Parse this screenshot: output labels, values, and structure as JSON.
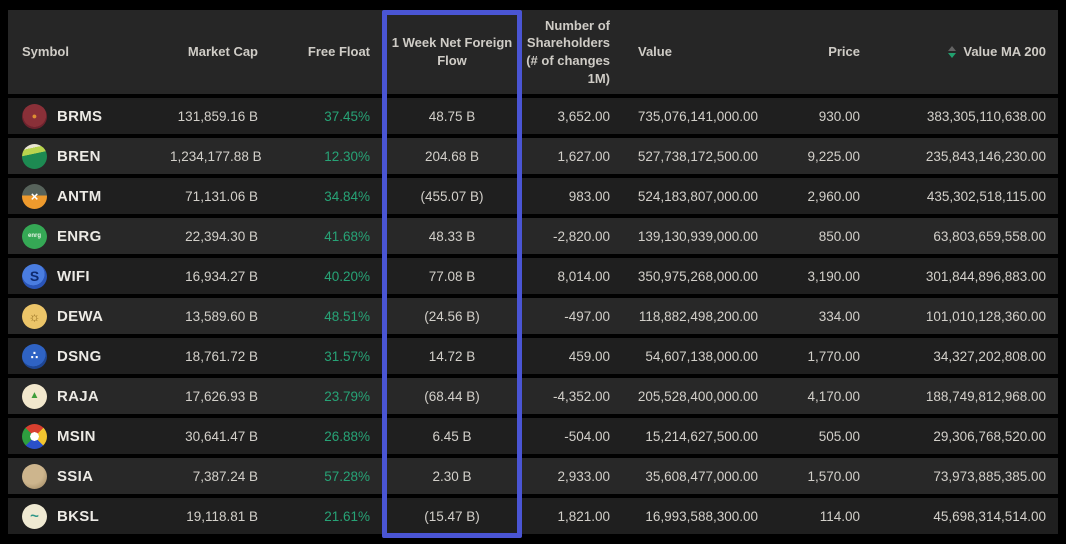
{
  "colors": {
    "bg": "#000000",
    "header_bg": "#262626",
    "row_odd": "#1f1f1f",
    "row_even": "#282828",
    "text": "#d3d0ca",
    "text_bright": "#eceae5",
    "positive_green": "#27a376",
    "highlight_border": "#4a55d4",
    "sort_up": "#636363",
    "sort_down": "#21a06e"
  },
  "table": {
    "columns": [
      {
        "id": "symbol",
        "label": "Symbol"
      },
      {
        "id": "market_cap",
        "label": "Market Cap"
      },
      {
        "id": "free_float",
        "label": "Free Float"
      },
      {
        "id": "net_foreign_flow",
        "label": "1 Week Net Foreign Flow",
        "highlighted": true
      },
      {
        "id": "num_shareholders",
        "label": "Number of Shareholders (# of changes 1M)"
      },
      {
        "id": "value",
        "label": "Value"
      },
      {
        "id": "price",
        "label": "Price"
      },
      {
        "id": "value_ma_200",
        "label": "Value MA 200",
        "sort_icon": true
      }
    ],
    "rows": [
      {
        "symbol": "BRMS",
        "market_cap": "131,859.16 B",
        "free_float": "37.45%",
        "net_foreign_flow": "48.75 B",
        "num_shareholders": "3,652.00",
        "value": "735,076,141,000.00",
        "price": "930.00",
        "value_ma_200": "383,305,110,638.00",
        "icon": {
          "bg": "radial-gradient(circle at 50% 45%, #8a3038 0 62%, #6d222d 63%)",
          "fg": "#de8f33",
          "glyph": "●",
          "glyph_size": "9px"
        }
      },
      {
        "symbol": "BREN",
        "market_cap": "1,234,177.88 B",
        "free_float": "12.30%",
        "net_foreign_flow": "204.68 B",
        "num_shareholders": "1,627.00",
        "value": "527,738,172,500.00",
        "price": "9,225.00",
        "value_ma_200": "235,843,146,230.00",
        "icon": {
          "bg": "linear-gradient(168deg, #e9e5d1 0 20%, #b8d44e 20% 40%, #1d8a52 41%)",
          "fg": "#ffffff",
          "glyph": ""
        }
      },
      {
        "symbol": "ANTM",
        "market_cap": "71,131.06 B",
        "free_float": "34.84%",
        "net_foreign_flow": "(455.07 B)",
        "num_shareholders": "983.00",
        "value": "524,183,807,000.00",
        "price": "2,960.00",
        "value_ma_200": "435,302,518,115.00",
        "icon": {
          "bg": "linear-gradient(180deg, #57635b 0 46%, #ee9a2d 46%)",
          "fg": "#ffffff",
          "glyph": "×",
          "glyph_size": "13px"
        }
      },
      {
        "symbol": "ENRG",
        "market_cap": "22,394.30 B",
        "free_float": "41.68%",
        "net_foreign_flow": "48.33 B",
        "num_shareholders": "-2,820.00",
        "value": "139,130,939,000.00",
        "price": "850.00",
        "value_ma_200": "63,803,659,558.00",
        "icon": {
          "bg": "radial-gradient(circle, #35a855 0 70%, #237c3d 71%)",
          "fg": "#e8f5e8",
          "glyph": "enrg",
          "glyph_size": "6px"
        }
      },
      {
        "symbol": "WIFI",
        "market_cap": "16,934.27 B",
        "free_float": "40.20%",
        "net_foreign_flow": "77.08 B",
        "num_shareholders": "8,014.00",
        "value": "350,975,268,000.00",
        "price": "3,190.00",
        "value_ma_200": "301,844,896,883.00",
        "icon": {
          "bg": "radial-gradient(circle at 45% 40%, #4a7de0 0 55%, #2a55b8 56%)",
          "fg": "#0e2a6e",
          "glyph": "S",
          "glyph_size": "14px"
        }
      },
      {
        "symbol": "DEWA",
        "market_cap": "13,589.60 B",
        "free_float": "48.51%",
        "net_foreign_flow": "(24.56 B)",
        "num_shareholders": "-497.00",
        "value": "118,882,498,200.00",
        "price": "334.00",
        "value_ma_200": "101,010,128,360.00",
        "icon": {
          "bg": "radial-gradient(circle, #ecc569 0 70%, #d4a84a 71%)",
          "fg": "#8f6a1e",
          "glyph": "☼",
          "glyph_size": "13px"
        }
      },
      {
        "symbol": "DSNG",
        "market_cap": "18,761.72 B",
        "free_float": "31.57%",
        "net_foreign_flow": "14.72 B",
        "num_shareholders": "459.00",
        "value": "54,607,138,000.00",
        "price": "1,770.00",
        "value_ma_200": "34,327,202,808.00",
        "icon": {
          "bg": "radial-gradient(circle at 45% 40%, #2f63c4 0 60%, #1e4694 61%)",
          "fg": "#ffffff",
          "glyph": "∴",
          "glyph_size": "11px"
        }
      },
      {
        "symbol": "RAJA",
        "market_cap": "17,626.93 B",
        "free_float": "23.79%",
        "net_foreign_flow": "(68.44 B)",
        "num_shareholders": "-4,352.00",
        "value": "205,528,400,000.00",
        "price": "4,170.00",
        "value_ma_200": "188,749,812,968.00",
        "icon": {
          "bg": "radial-gradient(circle, #f2e8cd 0 70%, #ddcfa8 71%)",
          "fg": "#3f9e3a",
          "glyph": "▲",
          "glyph_size": "10px"
        }
      },
      {
        "symbol": "MSIN",
        "market_cap": "30,641.47 B",
        "free_float": "26.88%",
        "net_foreign_flow": "6.45 B",
        "num_shareholders": "-504.00",
        "value": "15,214,627,500.00",
        "price": "505.00",
        "value_ma_200": "29,306,768,520.00",
        "icon": {
          "bg": "radial-gradient(circle, #ffffff 0 24%, rgba(255,255,255,0) 25%), conic-gradient(from -45deg, #d8402f 0 25%, #f2c530 25% 50%, #2a50c8 50% 75%, #2e9e3f 75% 100%)",
          "fg": "#ffffff",
          "glyph": ""
        }
      },
      {
        "symbol": "SSIA",
        "market_cap": "7,387.24 B",
        "free_float": "57.28%",
        "net_foreign_flow": "2.30 B",
        "num_shareholders": "2,933.00",
        "value": "35,608,477,000.00",
        "price": "1,570.00",
        "value_ma_200": "73,973,885,385.00",
        "icon": {
          "bg": "radial-gradient(circle at 40% 35%, #cdb58d 0 50%, #97805c 100%)",
          "fg": "#7a6848",
          "glyph": "",
          "glyph_size": "9px"
        }
      },
      {
        "symbol": "BKSL",
        "market_cap": "19,118.81 B",
        "free_float": "21.61%",
        "net_foreign_flow": "(15.47 B)",
        "num_shareholders": "1,821.00",
        "value": "16,993,588,300.00",
        "price": "114.00",
        "value_ma_200": "45,698,314,514.00",
        "icon": {
          "bg": "radial-gradient(circle, #efe9d2 0 70%, #d9d0b2 71%)",
          "fg": "#2e9688",
          "glyph": "~",
          "glyph_size": "15px"
        }
      }
    ]
  }
}
